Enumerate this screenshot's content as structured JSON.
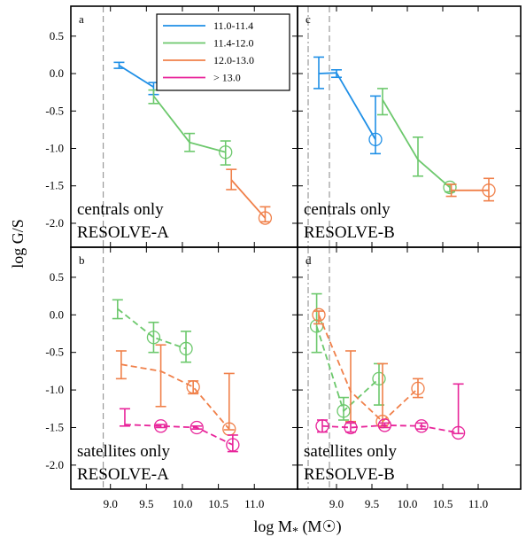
{
  "chart_data": {
    "type": "line",
    "xlabel": "log M",
    "xlabel_sub": "*",
    "xlabel_unit_open": " (M",
    "xlabel_unit_close": ")",
    "ylabel": "log G/S",
    "xlim": [
      8.45,
      11.6
    ],
    "ylim": [
      -2.32,
      0.9
    ],
    "x_ticks": [
      9.0,
      9.5,
      10.0,
      10.5,
      11.0
    ],
    "x_tick_labels": [
      "9.0",
      "9.5",
      "10.0",
      "10.5",
      "11.0"
    ],
    "y_ticks": [
      -2.0,
      -1.5,
      -1.0,
      -0.5,
      0.0,
      0.5
    ],
    "y_tick_labels": [
      "-2.0",
      "-1.5",
      "-1.0",
      "-0.5",
      "0.0",
      "0.5"
    ],
    "legend": {
      "placement": "top-right of panel a",
      "entries": [
        {
          "label": "11.0-11.4",
          "color": "#1f8fe6"
        },
        {
          "label": "11.4-12.0",
          "color": "#6cc86c"
        },
        {
          "label": "12.0-13.0",
          "color": "#f0804a"
        },
        {
          "label": "> 13.0",
          "color": "#e8249a"
        }
      ]
    },
    "panels": [
      {
        "letter": "a",
        "label1": "centrals only",
        "label2": "RESOLVE-A",
        "vlines": [
          {
            "x": 8.9,
            "style": "dash"
          }
        ],
        "series": [
          {
            "color": "#1f8fe6",
            "style": "solid",
            "points": [
              {
                "x": 9.12,
                "y": 0.11,
                "lo": 0.07,
                "hi": 0.15,
                "circle": false
              },
              {
                "x": 9.6,
                "y": -0.18,
                "lo": -0.28,
                "hi": -0.12,
                "circle": false
              }
            ]
          },
          {
            "color": "#6cc86c",
            "style": "solid",
            "points": [
              {
                "x": 9.6,
                "y": -0.3,
                "lo": -0.4,
                "hi": -0.22,
                "circle": false
              },
              {
                "x": 10.1,
                "y": -0.92,
                "lo": -1.04,
                "hi": -0.8,
                "circle": false
              },
              {
                "x": 10.6,
                "y": -1.05,
                "lo": -1.22,
                "hi": -0.9,
                "circle": true
              }
            ]
          },
          {
            "color": "#f0804a",
            "style": "solid",
            "points": [
              {
                "x": 10.68,
                "y": -1.42,
                "lo": -1.55,
                "hi": -1.28,
                "circle": false
              },
              {
                "x": 11.15,
                "y": -1.93,
                "lo": -1.98,
                "hi": -1.78,
                "circle": true
              }
            ]
          }
        ]
      },
      {
        "letter": "c",
        "label1": "centrals only",
        "label2": "RESOLVE-B",
        "vlines": [
          {
            "x": 8.6,
            "style": "dashdot"
          },
          {
            "x": 8.9,
            "style": "dash"
          }
        ],
        "series": [
          {
            "color": "#1f8fe6",
            "style": "solid",
            "points": [
              {
                "x": 8.75,
                "y": 0.0,
                "lo": -0.2,
                "hi": 0.22,
                "circle": false
              },
              {
                "x": 9.0,
                "y": 0.01,
                "lo": -0.05,
                "hi": 0.05,
                "circle": false
              },
              {
                "x": 9.55,
                "y": -0.88,
                "lo": -1.07,
                "hi": -0.3,
                "circle": true
              }
            ]
          },
          {
            "color": "#6cc86c",
            "style": "solid",
            "points": [
              {
                "x": 9.65,
                "y": -0.35,
                "lo": -0.55,
                "hi": -0.2,
                "circle": false
              },
              {
                "x": 10.15,
                "y": -1.15,
                "lo": -1.37,
                "hi": -0.85,
                "circle": false
              },
              {
                "x": 10.6,
                "y": -1.52,
                "lo": -1.58,
                "hi": -1.48,
                "circle": true
              }
            ]
          },
          {
            "color": "#f0804a",
            "style": "solid",
            "points": [
              {
                "x": 10.62,
                "y": -1.56,
                "lo": -1.64,
                "hi": -1.48,
                "circle": false
              },
              {
                "x": 11.15,
                "y": -1.56,
                "lo": -1.7,
                "hi": -1.4,
                "circle": true
              }
            ]
          }
        ]
      },
      {
        "letter": "b",
        "label1": "satellites only",
        "label2": "RESOLVE-A",
        "vlines": [
          {
            "x": 8.9,
            "style": "dash"
          }
        ],
        "series": [
          {
            "color": "#6cc86c",
            "style": "dash",
            "points": [
              {
                "x": 9.1,
                "y": 0.08,
                "lo": -0.05,
                "hi": 0.2,
                "circle": false
              },
              {
                "x": 9.6,
                "y": -0.3,
                "lo": -0.5,
                "hi": -0.1,
                "circle": true
              },
              {
                "x": 10.05,
                "y": -0.45,
                "lo": -0.63,
                "hi": -0.22,
                "circle": true
              }
            ]
          },
          {
            "color": "#f0804a",
            "style": "dash",
            "points": [
              {
                "x": 9.15,
                "y": -0.66,
                "lo": -0.85,
                "hi": -0.48,
                "circle": false
              },
              {
                "x": 9.7,
                "y": -0.75,
                "lo": -1.22,
                "hi": -0.4,
                "circle": false
              },
              {
                "x": 10.15,
                "y": -0.96,
                "lo": -1.05,
                "hi": -0.88,
                "circle": true
              },
              {
                "x": 10.65,
                "y": -1.52,
                "lo": -1.53,
                "hi": -0.78,
                "circle": true
              }
            ]
          },
          {
            "color": "#e8249a",
            "style": "dash",
            "points": [
              {
                "x": 9.2,
                "y": -1.46,
                "lo": -1.48,
                "hi": -1.25,
                "circle": false
              },
              {
                "x": 9.7,
                "y": -1.48,
                "lo": -1.5,
                "hi": -1.46,
                "circle": true
              },
              {
                "x": 10.2,
                "y": -1.5,
                "lo": -1.52,
                "hi": -1.48,
                "circle": true
              },
              {
                "x": 10.7,
                "y": -1.73,
                "lo": -1.82,
                "hi": -1.6,
                "circle": true
              }
            ]
          }
        ]
      },
      {
        "letter": "d",
        "label1": "satellites only",
        "label2": "RESOLVE-B",
        "vlines": [
          {
            "x": 8.6,
            "style": "dashdot"
          },
          {
            "x": 8.9,
            "style": "dash"
          }
        ],
        "series": [
          {
            "color": "#6cc86c",
            "style": "dash",
            "points": [
              {
                "x": 8.72,
                "y": -0.15,
                "lo": -0.5,
                "hi": 0.28,
                "circle": true
              },
              {
                "x": 9.1,
                "y": -1.28,
                "lo": -1.4,
                "hi": -1.1,
                "circle": true
              },
              {
                "x": 9.6,
                "y": -0.85,
                "lo": -1.2,
                "hi": -0.65,
                "circle": true
              }
            ]
          },
          {
            "color": "#f0804a",
            "style": "dash",
            "points": [
              {
                "x": 8.75,
                "y": 0.0,
                "lo": -0.12,
                "hi": 0.05,
                "circle": true
              },
              {
                "x": 9.2,
                "y": -1.02,
                "lo": -1.42,
                "hi": -0.48,
                "circle": false
              },
              {
                "x": 9.65,
                "y": -1.42,
                "lo": -1.48,
                "hi": -0.65,
                "circle": true
              },
              {
                "x": 10.15,
                "y": -0.98,
                "lo": -1.1,
                "hi": -0.85,
                "circle": true
              }
            ]
          },
          {
            "color": "#e8249a",
            "style": "dash",
            "points": [
              {
                "x": 8.8,
                "y": -1.48,
                "lo": -1.56,
                "hi": -1.4,
                "circle": true
              },
              {
                "x": 9.2,
                "y": -1.5,
                "lo": -1.56,
                "hi": -1.44,
                "circle": true
              },
              {
                "x": 9.68,
                "y": -1.47,
                "lo": -1.5,
                "hi": -1.44,
                "circle": true
              },
              {
                "x": 10.2,
                "y": -1.48,
                "lo": -1.52,
                "hi": -1.44,
                "circle": true
              },
              {
                "x": 10.72,
                "y": -1.57,
                "lo": -1.58,
                "hi": -0.92,
                "circle": true
              }
            ]
          }
        ]
      }
    ]
  }
}
